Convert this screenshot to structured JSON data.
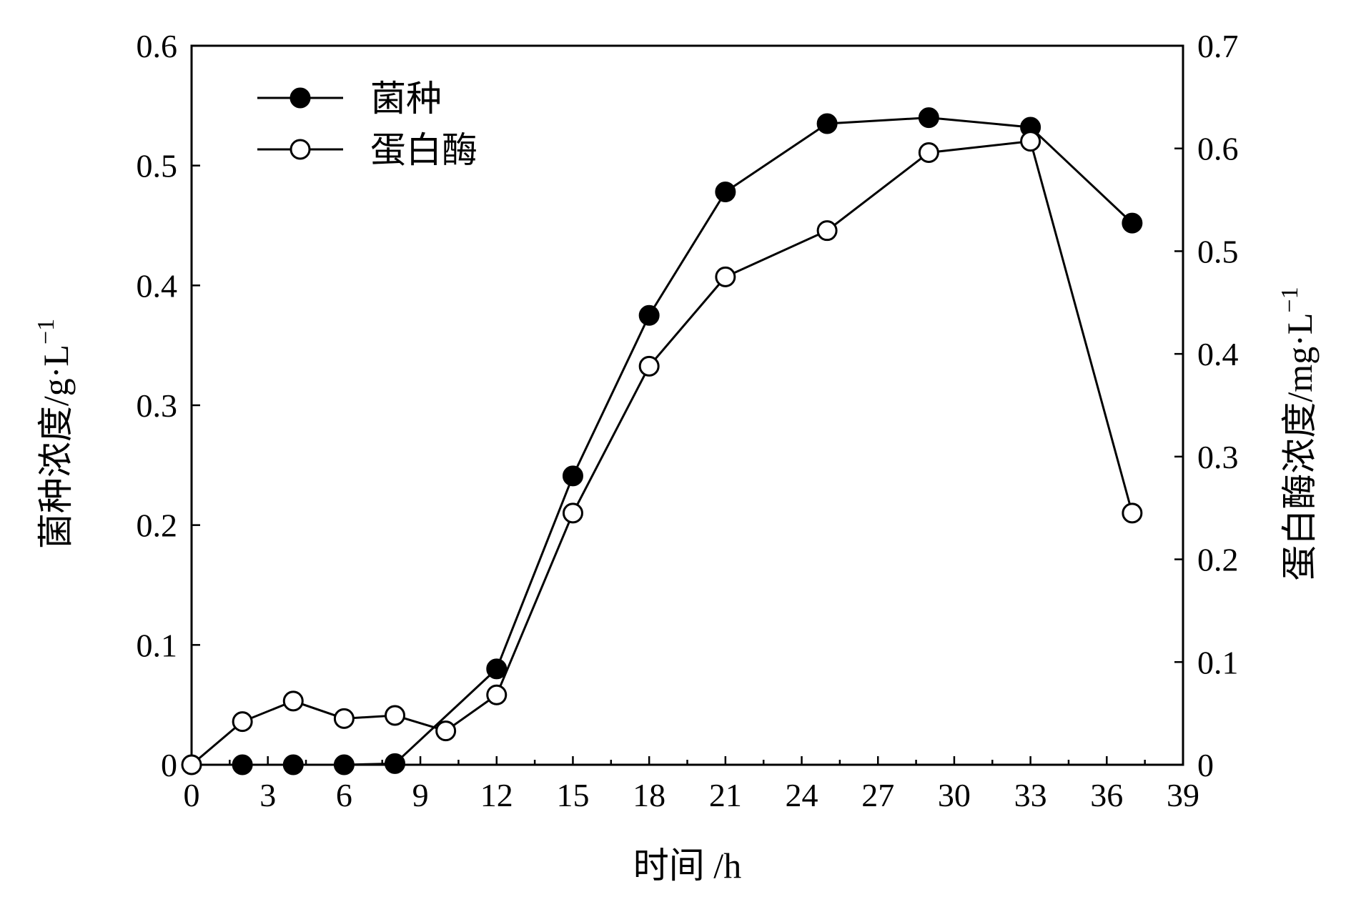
{
  "chart_data": {
    "type": "line",
    "xlabel": "时间 /h",
    "ylabel_left": "菌种浓度/g·L",
    "ylabel_left_sup": "−1",
    "ylabel_right": "蛋白酶浓度/mg·L",
    "ylabel_right_sup": "−1",
    "xlim": [
      0,
      39
    ],
    "ylim_left": [
      0,
      0.6
    ],
    "ylim_right": [
      0,
      0.7
    ],
    "xticks": [
      "0",
      "3",
      "6",
      "9",
      "12",
      "15",
      "18",
      "21",
      "24",
      "27",
      "30",
      "33",
      "36",
      "39"
    ],
    "yticks_left": [
      "0",
      "0.1",
      "0.2",
      "0.3",
      "0.4",
      "0.5",
      "0.6"
    ],
    "yticks_right": [
      "0",
      "0.1",
      "0.2",
      "0.3",
      "0.4",
      "0.5",
      "0.6",
      "0.7"
    ],
    "legend_position": "top-left",
    "grid": false,
    "series": [
      {
        "name": "菌种",
        "axis": "left",
        "marker": "filled-circle",
        "x": [
          2,
          4,
          6,
          8,
          12,
          15,
          18,
          21,
          25,
          29,
          33,
          37
        ],
        "y": [
          0.0,
          0.0,
          0.0,
          0.001,
          0.08,
          0.241,
          0.375,
          0.478,
          0.535,
          0.54,
          0.532,
          0.452
        ]
      },
      {
        "name": "蛋白酶",
        "axis": "right",
        "marker": "open-circle",
        "x": [
          0,
          2,
          4,
          6,
          8,
          10,
          12,
          15,
          18,
          21,
          25,
          29,
          33,
          37
        ],
        "y": [
          0.0,
          0.042,
          0.062,
          0.045,
          0.048,
          0.033,
          0.068,
          0.245,
          0.388,
          0.475,
          0.52,
          0.596,
          0.607,
          0.245
        ]
      }
    ]
  }
}
